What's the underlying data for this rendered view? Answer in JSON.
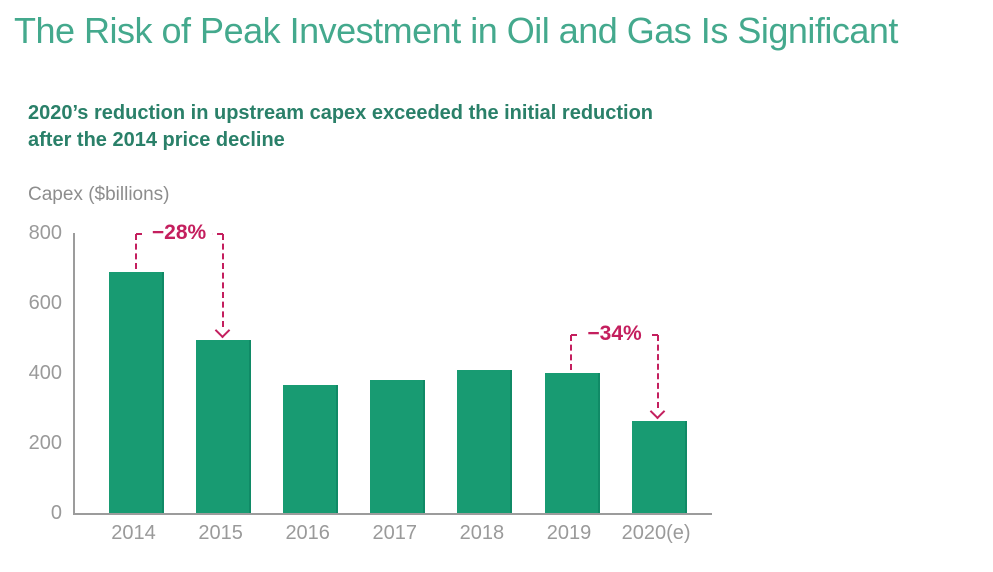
{
  "title": "The Risk of Peak Investment in Oil and Gas Is Significant",
  "subtitle": "2020’s reduction in upstream capex exceeded the initial reduction\nafter the 2014 price decline",
  "chart_data": {
    "type": "bar",
    "categories": [
      "2014",
      "2015",
      "2016",
      "2017",
      "2018",
      "2019",
      "2020(e)"
    ],
    "values": [
      690,
      495,
      365,
      380,
      410,
      400,
      264
    ],
    "title": "",
    "xlabel": "",
    "ylabel": "Capex ($billions)",
    "ylim": [
      0,
      800
    ],
    "yticks": [
      0,
      200,
      400,
      600,
      800
    ],
    "grid": false,
    "legend": "none",
    "annotations": [
      {
        "label": "−28%",
        "from": "2014",
        "to": "2015"
      },
      {
        "label": "−34%",
        "from": "2019",
        "to": "2020(e)"
      }
    ]
  },
  "colors": {
    "title": "#44a98d",
    "subtitle": "#2a8069",
    "bar": "#189b72",
    "bar_edge": "#108a66",
    "annotation": "#c41f5e",
    "axis": "#9c9c9c",
    "tick_text": "#9a9a9a",
    "gray_text": "#8d8d8d"
  }
}
